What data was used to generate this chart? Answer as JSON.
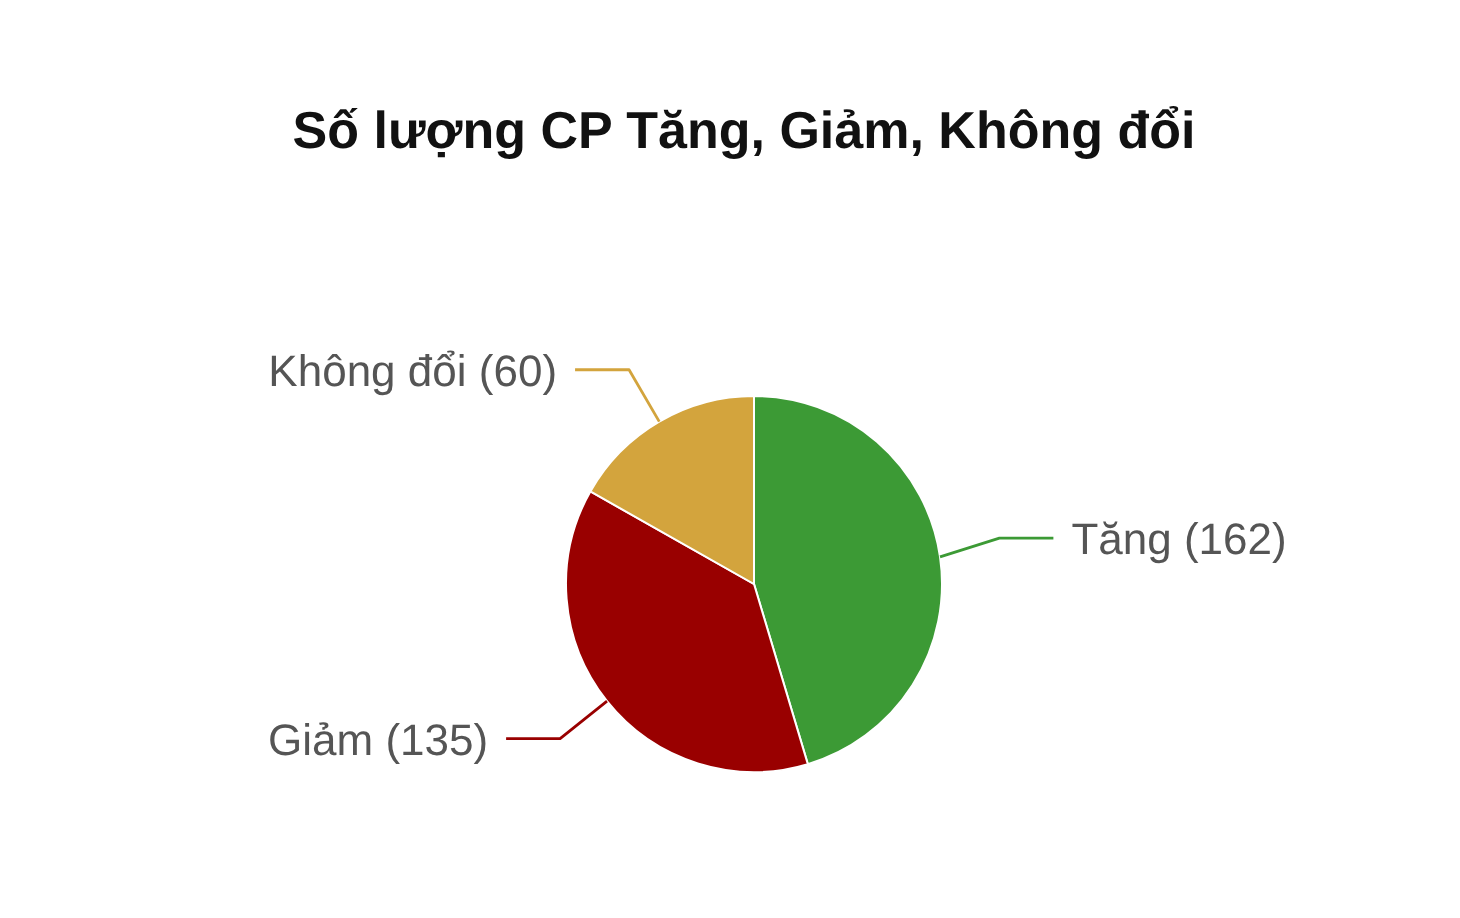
{
  "chart_data": {
    "type": "pie",
    "title": "Số lượng CP Tăng, Giảm, Không đổi",
    "categories": [
      "Tăng",
      "Giảm",
      "Không đổi"
    ],
    "values": [
      162,
      135,
      60
    ],
    "value_labels": [
      "(162)",
      "(135)",
      "(60)"
    ],
    "colors": [
      "#3c9a35",
      "#990000",
      "#d3a43d"
    ]
  }
}
